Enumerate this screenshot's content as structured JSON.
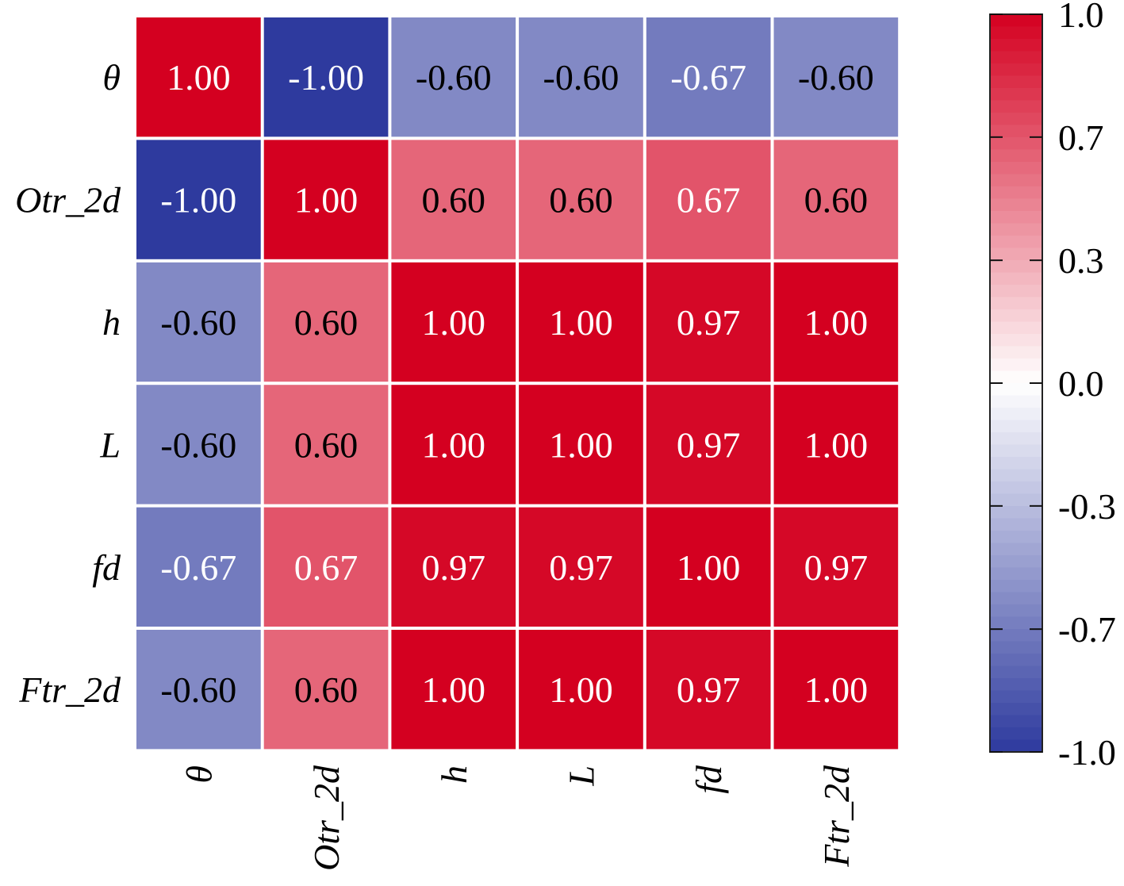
{
  "chart_data": {
    "type": "heatmap",
    "title": "",
    "row_labels": [
      "θ",
      "Otr_2d",
      "h",
      "L",
      "fd",
      "Ftr_2d"
    ],
    "col_labels": [
      "θ",
      "Otr_2d",
      "h",
      "L",
      "fd",
      "Ftr_2d"
    ],
    "values": [
      [
        1.0,
        -1.0,
        -0.6,
        -0.6,
        -0.67,
        -0.6
      ],
      [
        -1.0,
        1.0,
        0.6,
        0.6,
        0.67,
        0.6
      ],
      [
        -0.6,
        0.6,
        1.0,
        1.0,
        0.97,
        1.0
      ],
      [
        -0.6,
        0.6,
        1.0,
        1.0,
        0.97,
        1.0
      ],
      [
        -0.67,
        0.67,
        0.97,
        0.97,
        1.0,
        0.97
      ],
      [
        -0.6,
        0.6,
        1.0,
        1.0,
        0.97,
        1.0
      ]
    ],
    "value_labels": [
      [
        "1.00",
        "-1.00",
        "-0.60",
        "-0.60",
        "-0.67",
        "-0.60"
      ],
      [
        "-1.00",
        "1.00",
        "0.60",
        "0.60",
        "0.67",
        "0.60"
      ],
      [
        "-0.60",
        "0.60",
        "1.00",
        "1.00",
        "0.97",
        "1.00"
      ],
      [
        "-0.60",
        "0.60",
        "1.00",
        "1.00",
        "0.97",
        "1.00"
      ],
      [
        "-0.67",
        "0.67",
        "0.97",
        "0.97",
        "1.00",
        "0.97"
      ],
      [
        "-0.60",
        "0.60",
        "1.00",
        "1.00",
        "0.97",
        "1.00"
      ]
    ],
    "colorbar": {
      "range": [
        -1.0,
        1.0
      ],
      "ticks": [
        1.0,
        0.667,
        0.333,
        0.0,
        -0.333,
        -0.667,
        -1.0
      ],
      "tick_labels": [
        "1.0",
        "0.7",
        "0.3",
        "0.0",
        "-0.3",
        "-0.7",
        "-1.0"
      ],
      "placement": "right"
    },
    "colors": {
      "low": "#2e3a9e",
      "mid": "#ffffff",
      "high": "#d40020"
    }
  }
}
